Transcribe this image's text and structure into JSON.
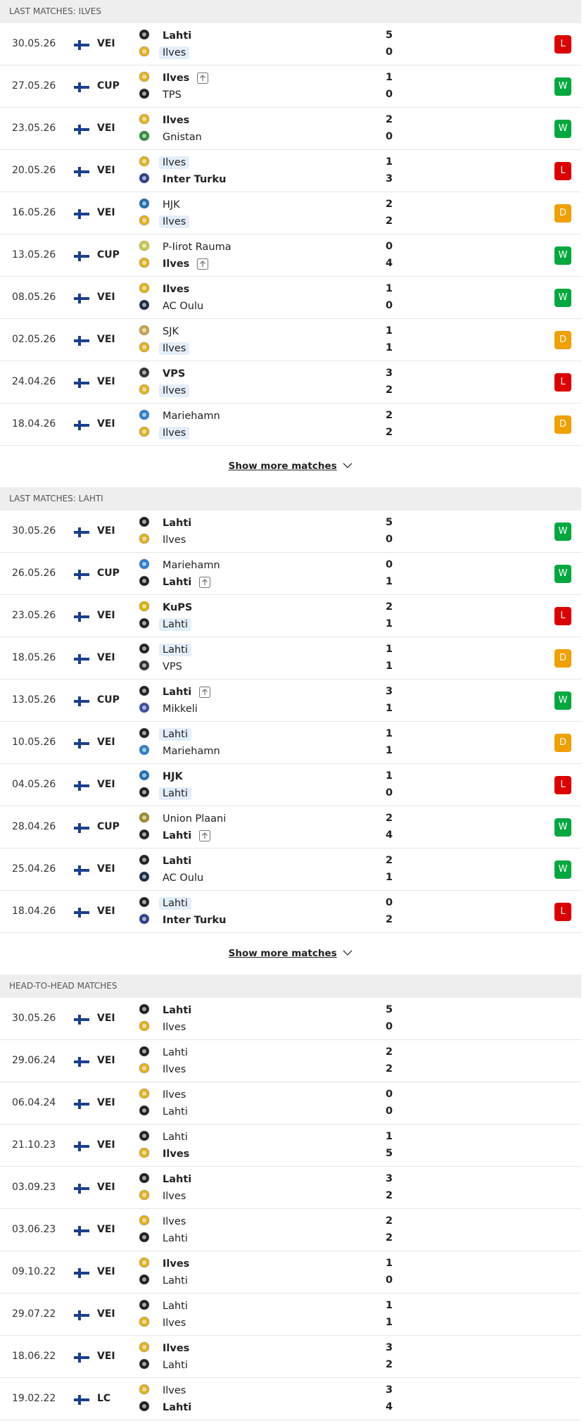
{
  "sections": [
    {
      "title": "LAST MATCHES: ILVES",
      "more": "Show more matches",
      "matches": [
        {
          "date": "30.05.26",
          "comp": "VEI",
          "home": {
            "name": "Lahti",
            "logo": "#222",
            "bold": true
          },
          "away": {
            "name": "Ilves",
            "logo": "#e3b21f",
            "hl": true
          },
          "score": [
            "5",
            "0"
          ],
          "result": "L"
        },
        {
          "date": "27.05.26",
          "comp": "CUP",
          "home": {
            "name": "Ilves",
            "logo": "#e3b21f",
            "bold": true,
            "up": true
          },
          "away": {
            "name": "TPS",
            "logo": "#222"
          },
          "score": [
            "1",
            "0"
          ],
          "result": "W"
        },
        {
          "date": "23.05.26",
          "comp": "VEI",
          "home": {
            "name": "Ilves",
            "logo": "#e3b21f",
            "bold": true
          },
          "away": {
            "name": "Gnistan",
            "logo": "#2f8f3a"
          },
          "score": [
            "2",
            "0"
          ],
          "result": "W"
        },
        {
          "date": "20.05.26",
          "comp": "VEI",
          "home": {
            "name": "Ilves",
            "logo": "#e3b21f",
            "hl": true
          },
          "away": {
            "name": "Inter Turku",
            "logo": "#2b3f8c",
            "bold": true
          },
          "score": [
            "1",
            "3"
          ],
          "result": "L"
        },
        {
          "date": "16.05.26",
          "comp": "VEI",
          "home": {
            "name": "HJK",
            "logo": "#1f6fb5"
          },
          "away": {
            "name": "Ilves",
            "logo": "#e3b21f",
            "hl": true
          },
          "score": [
            "2",
            "2"
          ],
          "result": "D"
        },
        {
          "date": "13.05.26",
          "comp": "CUP",
          "home": {
            "name": "P-Iirot Rauma",
            "logo": "#c9c94a"
          },
          "away": {
            "name": "Ilves",
            "logo": "#e3b21f",
            "bold": true,
            "up": true
          },
          "score": [
            "0",
            "4"
          ],
          "result": "W"
        },
        {
          "date": "08.05.26",
          "comp": "VEI",
          "home": {
            "name": "Ilves",
            "logo": "#e3b21f",
            "bold": true
          },
          "away": {
            "name": "AC Oulu",
            "logo": "#1c2b4a"
          },
          "score": [
            "1",
            "0"
          ],
          "result": "W"
        },
        {
          "date": "02.05.26",
          "comp": "VEI",
          "home": {
            "name": "SJK",
            "logo": "#c9a24a"
          },
          "away": {
            "name": "Ilves",
            "logo": "#e3b21f",
            "hl": true
          },
          "score": [
            "1",
            "1"
          ],
          "result": "D"
        },
        {
          "date": "24.04.26",
          "comp": "VEI",
          "home": {
            "name": "VPS",
            "logo": "#333",
            "bold": true
          },
          "away": {
            "name": "Ilves",
            "logo": "#e3b21f",
            "hl": true
          },
          "score": [
            "3",
            "2"
          ],
          "result": "L"
        },
        {
          "date": "18.04.26",
          "comp": "VEI",
          "home": {
            "name": "Mariehamn",
            "logo": "#2d7fd3"
          },
          "away": {
            "name": "Ilves",
            "logo": "#e3b21f",
            "hl": true
          },
          "score": [
            "2",
            "2"
          ],
          "result": "D"
        }
      ]
    },
    {
      "title": "LAST MATCHES: LAHTI",
      "more": "Show more matches",
      "matches": [
        {
          "date": "30.05.26",
          "comp": "VEI",
          "home": {
            "name": "Lahti",
            "logo": "#222",
            "bold": true
          },
          "away": {
            "name": "Ilves",
            "logo": "#e3b21f"
          },
          "score": [
            "5",
            "0"
          ],
          "result": "W"
        },
        {
          "date": "26.05.26",
          "comp": "CUP",
          "home": {
            "name": "Mariehamn",
            "logo": "#2d7fd3"
          },
          "away": {
            "name": "Lahti",
            "logo": "#222",
            "bold": true,
            "up": true
          },
          "score": [
            "0",
            "1"
          ],
          "result": "W"
        },
        {
          "date": "23.05.26",
          "comp": "VEI",
          "home": {
            "name": "KuPS",
            "logo": "#d9b400",
            "bold": true
          },
          "away": {
            "name": "Lahti",
            "logo": "#222",
            "hl": true
          },
          "score": [
            "2",
            "1"
          ],
          "result": "L"
        },
        {
          "date": "18.05.26",
          "comp": "VEI",
          "home": {
            "name": "Lahti",
            "logo": "#222",
            "hl": true
          },
          "away": {
            "name": "VPS",
            "logo": "#333"
          },
          "score": [
            "1",
            "1"
          ],
          "result": "D"
        },
        {
          "date": "13.05.26",
          "comp": "CUP",
          "home": {
            "name": "Lahti",
            "logo": "#222",
            "bold": true,
            "up": true
          },
          "away": {
            "name": "Mikkeli",
            "logo": "#3b4fa0"
          },
          "score": [
            "3",
            "1"
          ],
          "result": "W"
        },
        {
          "date": "10.05.26",
          "comp": "VEI",
          "home": {
            "name": "Lahti",
            "logo": "#222",
            "hl": true
          },
          "away": {
            "name": "Mariehamn",
            "logo": "#2d7fd3"
          },
          "score": [
            "1",
            "1"
          ],
          "result": "D"
        },
        {
          "date": "04.05.26",
          "comp": "VEI",
          "home": {
            "name": "HJK",
            "logo": "#1f6fb5",
            "bold": true
          },
          "away": {
            "name": "Lahti",
            "logo": "#222",
            "hl": true
          },
          "score": [
            "1",
            "0"
          ],
          "result": "L"
        },
        {
          "date": "28.04.26",
          "comp": "CUP",
          "home": {
            "name": "Union Plaani",
            "logo": "#a08a2a"
          },
          "away": {
            "name": "Lahti",
            "logo": "#222",
            "bold": true,
            "up": true
          },
          "score": [
            "2",
            "4"
          ],
          "result": "W"
        },
        {
          "date": "25.04.26",
          "comp": "VEI",
          "home": {
            "name": "Lahti",
            "logo": "#222",
            "bold": true
          },
          "away": {
            "name": "AC Oulu",
            "logo": "#1c2b4a"
          },
          "score": [
            "2",
            "1"
          ],
          "result": "W"
        },
        {
          "date": "18.04.26",
          "comp": "VEI",
          "home": {
            "name": "Lahti",
            "logo": "#222",
            "hl": true
          },
          "away": {
            "name": "Inter Turku",
            "logo": "#2b3f8c",
            "bold": true
          },
          "score": [
            "0",
            "2"
          ],
          "result": "L"
        }
      ]
    },
    {
      "title": "HEAD-TO-HEAD MATCHES",
      "matches": [
        {
          "date": "30.05.26",
          "comp": "VEI",
          "home": {
            "name": "Lahti",
            "logo": "#222",
            "bold": true
          },
          "away": {
            "name": "Ilves",
            "logo": "#e3b21f"
          },
          "score": [
            "5",
            "0"
          ]
        },
        {
          "date": "29.06.24",
          "comp": "VEI",
          "home": {
            "name": "Lahti",
            "logo": "#222"
          },
          "away": {
            "name": "Ilves",
            "logo": "#e3b21f"
          },
          "score": [
            "2",
            "2"
          ]
        },
        {
          "date": "06.04.24",
          "comp": "VEI",
          "home": {
            "name": "Ilves",
            "logo": "#e3b21f"
          },
          "away": {
            "name": "Lahti",
            "logo": "#222"
          },
          "score": [
            "0",
            "0"
          ]
        },
        {
          "date": "21.10.23",
          "comp": "VEI",
          "home": {
            "name": "Lahti",
            "logo": "#222"
          },
          "away": {
            "name": "Ilves",
            "logo": "#e3b21f",
            "bold": true
          },
          "score": [
            "1",
            "5"
          ]
        },
        {
          "date": "03.09.23",
          "comp": "VEI",
          "home": {
            "name": "Lahti",
            "logo": "#222",
            "bold": true
          },
          "away": {
            "name": "Ilves",
            "logo": "#e3b21f"
          },
          "score": [
            "3",
            "2"
          ]
        },
        {
          "date": "03.06.23",
          "comp": "VEI",
          "home": {
            "name": "Ilves",
            "logo": "#e3b21f"
          },
          "away": {
            "name": "Lahti",
            "logo": "#222"
          },
          "score": [
            "2",
            "2"
          ]
        },
        {
          "date": "09.10.22",
          "comp": "VEI",
          "home": {
            "name": "Ilves",
            "logo": "#e3b21f",
            "bold": true
          },
          "away": {
            "name": "Lahti",
            "logo": "#222"
          },
          "score": [
            "1",
            "0"
          ]
        },
        {
          "date": "29.07.22",
          "comp": "VEI",
          "home": {
            "name": "Lahti",
            "logo": "#222"
          },
          "away": {
            "name": "Ilves",
            "logo": "#e3b21f"
          },
          "score": [
            "1",
            "1"
          ]
        },
        {
          "date": "18.06.22",
          "comp": "VEI",
          "home": {
            "name": "Ilves",
            "logo": "#e3b21f",
            "bold": true
          },
          "away": {
            "name": "Lahti",
            "logo": "#222"
          },
          "score": [
            "3",
            "2"
          ]
        },
        {
          "date": "19.02.22",
          "comp": "LC",
          "home": {
            "name": "Ilves",
            "logo": "#e3b21f"
          },
          "away": {
            "name": "Lahti",
            "logo": "#222",
            "bold": true
          },
          "score": [
            "3",
            "4"
          ]
        }
      ]
    }
  ]
}
